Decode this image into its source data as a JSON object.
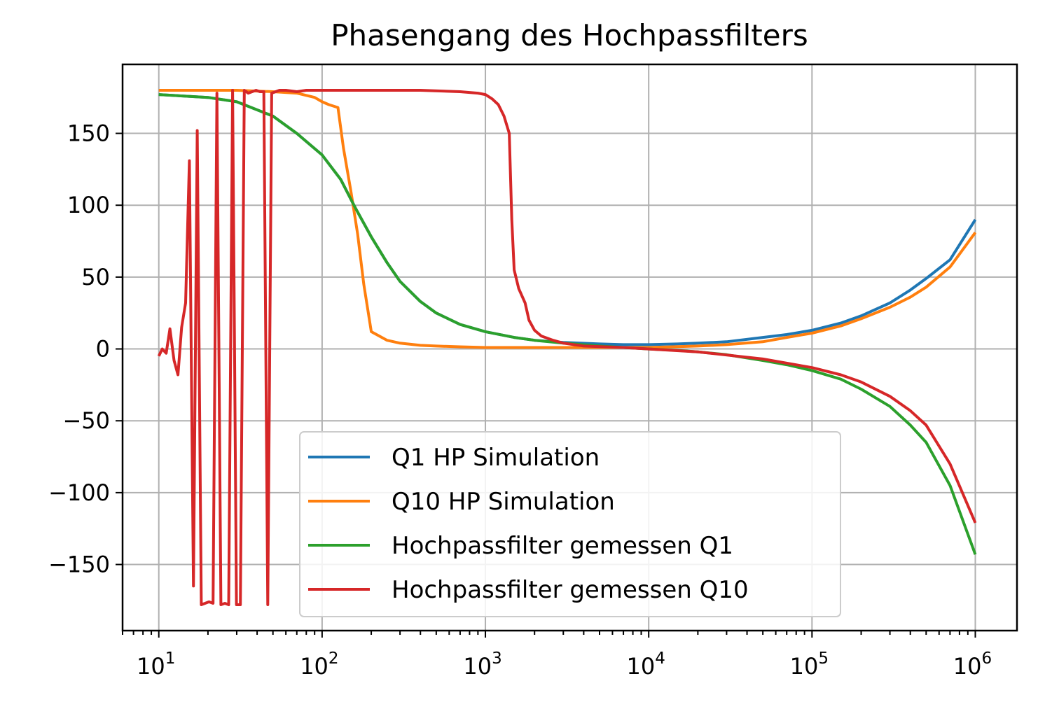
{
  "chart_data": {
    "type": "line",
    "title": "Phasengang des Hochpassfilters",
    "xlabel": "",
    "ylabel": "",
    "x_scale": "log",
    "xlim": [
      6,
      1800000
    ],
    "ylim": [
      -196,
      198
    ],
    "grid": true,
    "legend_position": "lower center",
    "x_ticks": [
      {
        "value": 10,
        "label": "10",
        "exp": "1"
      },
      {
        "value": 100,
        "label": "10",
        "exp": "2"
      },
      {
        "value": 1000,
        "label": "10",
        "exp": "3"
      },
      {
        "value": 10000,
        "label": "10",
        "exp": "4"
      },
      {
        "value": 100000,
        "label": "10",
        "exp": "5"
      },
      {
        "value": 1000000,
        "label": "10",
        "exp": "6"
      }
    ],
    "y_ticks": [
      {
        "value": 150,
        "label": "150"
      },
      {
        "value": 100,
        "label": "100"
      },
      {
        "value": 50,
        "label": "50"
      },
      {
        "value": 0,
        "label": "0"
      },
      {
        "value": -50,
        "label": "−50"
      },
      {
        "value": -100,
        "label": "−100"
      },
      {
        "value": -150,
        "label": "−150"
      }
    ],
    "series": [
      {
        "name": "Q1 HP Simulation",
        "color": "#1f77b4",
        "points": [
          [
            10,
            177
          ],
          [
            20,
            175
          ],
          [
            30,
            172
          ],
          [
            50,
            162
          ],
          [
            70,
            150
          ],
          [
            100,
            135
          ],
          [
            130,
            118
          ],
          [
            160,
            98
          ],
          [
            200,
            78
          ],
          [
            250,
            60
          ],
          [
            300,
            47
          ],
          [
            400,
            33
          ],
          [
            500,
            25
          ],
          [
            700,
            17
          ],
          [
            1000,
            12
          ],
          [
            1500,
            8
          ],
          [
            2000,
            6
          ],
          [
            3000,
            4.5
          ],
          [
            5000,
            3.5
          ],
          [
            7000,
            3
          ],
          [
            10000,
            3
          ],
          [
            15000,
            3.5
          ],
          [
            20000,
            4
          ],
          [
            30000,
            5
          ],
          [
            50000,
            8
          ],
          [
            70000,
            10
          ],
          [
            100000,
            13
          ],
          [
            150000,
            18
          ],
          [
            200000,
            23
          ],
          [
            300000,
            32
          ],
          [
            400000,
            41
          ],
          [
            500000,
            49
          ],
          [
            700000,
            62
          ],
          [
            1000000,
            90
          ]
        ]
      },
      {
        "name": "Q10 HP Simulation",
        "color": "#ff7f0e",
        "points": [
          [
            10,
            180
          ],
          [
            20,
            180
          ],
          [
            30,
            180
          ],
          [
            50,
            179
          ],
          [
            70,
            178
          ],
          [
            90,
            175
          ],
          [
            100,
            172
          ],
          [
            110,
            170
          ],
          [
            125,
            168
          ],
          [
            135,
            140
          ],
          [
            150,
            110
          ],
          [
            165,
            80
          ],
          [
            180,
            45
          ],
          [
            200,
            12
          ],
          [
            250,
            6
          ],
          [
            300,
            4
          ],
          [
            400,
            2.5
          ],
          [
            500,
            2
          ],
          [
            700,
            1.5
          ],
          [
            1000,
            1
          ],
          [
            2000,
            1
          ],
          [
            5000,
            1
          ],
          [
            10000,
            1
          ],
          [
            20000,
            2
          ],
          [
            30000,
            3
          ],
          [
            50000,
            5
          ],
          [
            70000,
            8
          ],
          [
            100000,
            11
          ],
          [
            150000,
            16
          ],
          [
            200000,
            21
          ],
          [
            300000,
            29
          ],
          [
            400000,
            36
          ],
          [
            500000,
            43
          ],
          [
            700000,
            57
          ],
          [
            1000000,
            81
          ]
        ]
      },
      {
        "name": "Hochpassfilter gemessen Q1",
        "color": "#2ca02c",
        "points": [
          [
            10,
            177
          ],
          [
            20,
            175
          ],
          [
            30,
            172
          ],
          [
            50,
            162
          ],
          [
            70,
            150
          ],
          [
            100,
            135
          ],
          [
            130,
            118
          ],
          [
            160,
            98
          ],
          [
            200,
            78
          ],
          [
            250,
            60
          ],
          [
            300,
            47
          ],
          [
            400,
            33
          ],
          [
            500,
            25
          ],
          [
            700,
            17
          ],
          [
            1000,
            12
          ],
          [
            1500,
            8
          ],
          [
            2000,
            6
          ],
          [
            3000,
            4
          ],
          [
            5000,
            2
          ],
          [
            7000,
            1
          ],
          [
            10000,
            0
          ],
          [
            15000,
            -1
          ],
          [
            20000,
            -2
          ],
          [
            30000,
            -4
          ],
          [
            50000,
            -8
          ],
          [
            70000,
            -11
          ],
          [
            100000,
            -15
          ],
          [
            150000,
            -21
          ],
          [
            200000,
            -28
          ],
          [
            300000,
            -40
          ],
          [
            400000,
            -53
          ],
          [
            500000,
            -65
          ],
          [
            700000,
            -95
          ],
          [
            1000000,
            -143
          ]
        ]
      },
      {
        "name": "Hochpassfilter gemessen Q10",
        "color": "#d62728",
        "points": [
          [
            10,
            -5
          ],
          [
            10.5,
            0
          ],
          [
            11.1,
            -3
          ],
          [
            11.7,
            14
          ],
          [
            12.4,
            -8
          ],
          [
            13.1,
            -18
          ],
          [
            13.8,
            15
          ],
          [
            14.6,
            32
          ],
          [
            15.4,
            131
          ],
          [
            16.3,
            -165
          ],
          [
            17.2,
            152
          ],
          [
            18.2,
            -178
          ],
          [
            19.2,
            -177
          ],
          [
            20.3,
            -176
          ],
          [
            21.5,
            -177
          ],
          [
            22.7,
            178
          ],
          [
            24,
            -178
          ],
          [
            25.4,
            -177
          ],
          [
            26.8,
            -178
          ],
          [
            28.3,
            180
          ],
          [
            29.9,
            -178
          ],
          [
            31.6,
            -178
          ],
          [
            33.4,
            180
          ],
          [
            35.3,
            178
          ],
          [
            37.3,
            179
          ],
          [
            39.4,
            180
          ],
          [
            41.6,
            179
          ],
          [
            44,
            179
          ],
          [
            46.5,
            -178
          ],
          [
            49.1,
            178
          ],
          [
            51.9,
            179
          ],
          [
            54.8,
            180
          ],
          [
            60,
            180
          ],
          [
            70,
            179
          ],
          [
            80,
            180
          ],
          [
            100,
            180
          ],
          [
            200,
            180
          ],
          [
            400,
            180
          ],
          [
            700,
            179
          ],
          [
            900,
            178
          ],
          [
            1000,
            177
          ],
          [
            1100,
            174
          ],
          [
            1200,
            170
          ],
          [
            1300,
            162
          ],
          [
            1400,
            150
          ],
          [
            1450,
            90
          ],
          [
            1500,
            55
          ],
          [
            1600,
            42
          ],
          [
            1750,
            32
          ],
          [
            1850,
            20
          ],
          [
            2000,
            13
          ],
          [
            2200,
            9
          ],
          [
            2600,
            6
          ],
          [
            3000,
            4
          ],
          [
            4000,
            2
          ],
          [
            7000,
            1
          ],
          [
            10000,
            0
          ],
          [
            20000,
            -2
          ],
          [
            50000,
            -7
          ],
          [
            100000,
            -13
          ],
          [
            150000,
            -18
          ],
          [
            200000,
            -23
          ],
          [
            300000,
            -33
          ],
          [
            400000,
            -43
          ],
          [
            500000,
            -53
          ],
          [
            700000,
            -80
          ],
          [
            1000000,
            -121
          ]
        ]
      }
    ]
  }
}
